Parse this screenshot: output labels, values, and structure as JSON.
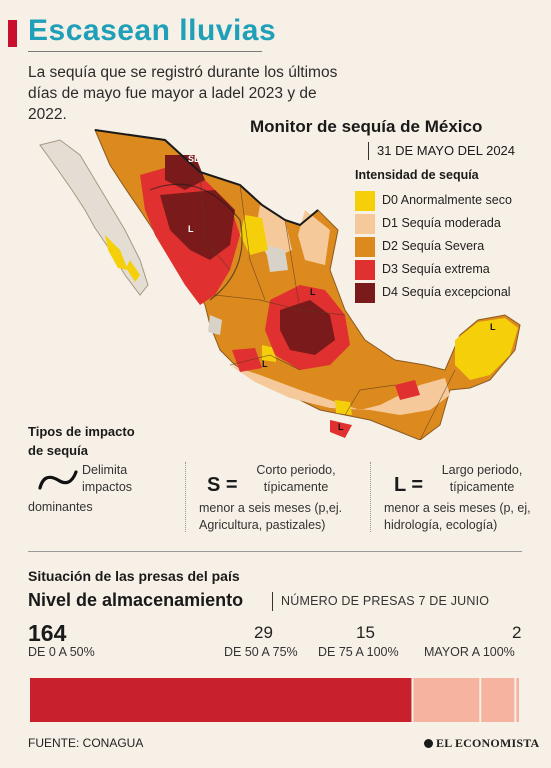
{
  "header": {
    "title": "Escasean lluvias",
    "subtitle": "La sequía que se registró durante los últimos días de mayo fue mayor a ladel 2023 y de 2022."
  },
  "monitor": {
    "title": "Monitor de sequía de México",
    "date": "31 DE MAYO DEL 2024",
    "legend_title": "Intensidad de sequía",
    "legend": [
      {
        "code": "D0",
        "label": "D0 Anormalmente seco",
        "color": "#f5d00a"
      },
      {
        "code": "D1",
        "label": "D1 Sequía moderada",
        "color": "#f6c99a"
      },
      {
        "code": "D2",
        "label": "D2 Sequía Severa",
        "color": "#dc8a1e"
      },
      {
        "code": "D3",
        "label": "D3 Sequía extrema",
        "color": "#e03030"
      },
      {
        "code": "D4",
        "label": "D4 Sequía excepcional",
        "color": "#7a1a1a"
      }
    ],
    "map_labels": [
      "SL",
      "L",
      "L",
      "L",
      "L",
      "L"
    ]
  },
  "impact": {
    "title": "Tipos de impacto de sequía",
    "delimita_1": "Delimita impactos",
    "delimita_2": "dominantes",
    "short": {
      "letter": "S =",
      "line1": "Corto periodo, típicamente",
      "line2": "menor a seis meses (p,ej. Agricultura, pastizales)"
    },
    "long": {
      "letter": "L =",
      "line1": "Largo periodo, típicamente",
      "line2": "menor a seis meses (p, ej, hidrología, ecología)"
    }
  },
  "presas": {
    "section_title": "Situación de las presas del país",
    "title": "Nivel de almacenamiento",
    "subtitle": "NÚMERO DE PRESAS 7 DE JUNIO"
  },
  "chart_data": {
    "type": "bar",
    "orientation": "horizontal-stacked",
    "title": "Nivel de almacenamiento",
    "subtitle": "NÚMERO DE PRESAS 7 DE JUNIO",
    "categories": [
      "DE 0 A 50%",
      "DE 50 A 75%",
      "DE 75 A 100%",
      "MAYOR A 100%"
    ],
    "values": [
      164,
      29,
      15,
      2
    ],
    "colors": [
      "#c8202c",
      "#f5b3a0",
      "#f5b3a0",
      "#f5b3a0"
    ]
  },
  "footer": {
    "source": "FUENTE: CONAGUA",
    "brand": "EL ECONOMISTA"
  }
}
